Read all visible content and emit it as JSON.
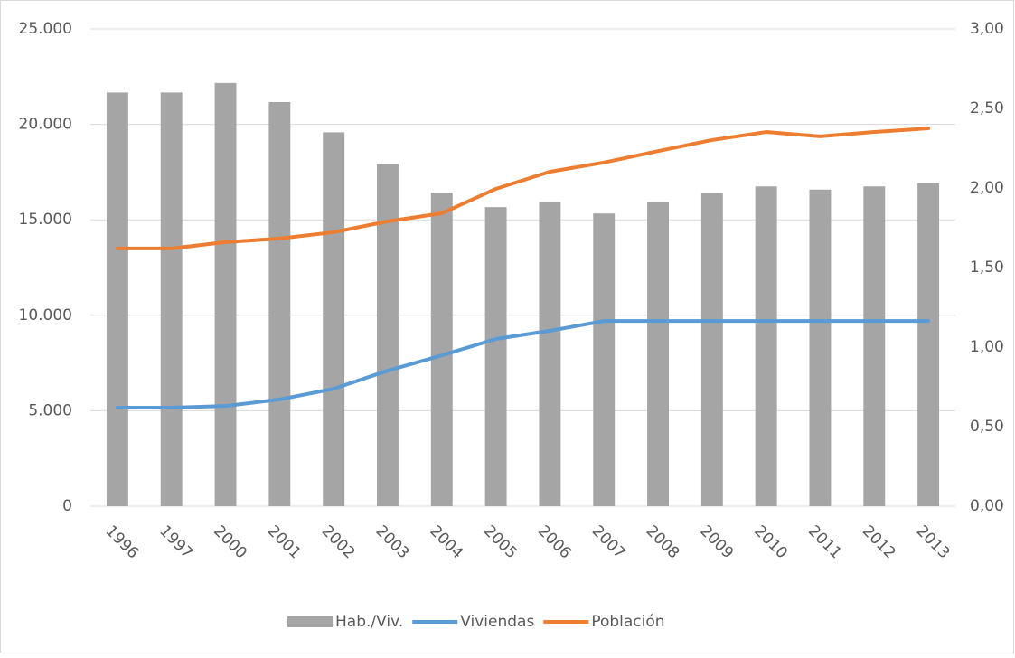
{
  "chart_data": {
    "type": "bar-line",
    "categories": [
      "1996",
      "1997",
      "2000",
      "2001",
      "2002",
      "2003",
      "2004",
      "2005",
      "2006",
      "2007",
      "2008",
      "2009",
      "2010",
      "2011",
      "2012",
      "2013"
    ],
    "series": [
      {
        "name": "Hab./Viv.",
        "type": "bar",
        "axis": "y2",
        "color": "#a5a5a5",
        "values": [
          2.6,
          2.6,
          2.66,
          2.54,
          2.35,
          2.15,
          1.97,
          1.88,
          1.91,
          1.84,
          1.91,
          1.97,
          2.01,
          1.99,
          2.01,
          2.03
        ]
      },
      {
        "name": "Viviendas",
        "type": "line",
        "color": "#5b9bd5",
        "values": [
          5160,
          5160,
          5250,
          5590,
          6150,
          7100,
          7900,
          8760,
          9190,
          9700,
          9700,
          9700,
          9700,
          9700,
          9700,
          9700
        ]
      },
      {
        "name": "Población",
        "type": "line",
        "color": "#ed7d31",
        "values": [
          13500,
          13500,
          13830,
          14020,
          14350,
          14920,
          15340,
          16620,
          17520,
          18000,
          18600,
          19180,
          19600,
          19370,
          19600,
          19790
        ]
      }
    ],
    "ylim": [
      0,
      25000
    ],
    "yticks": [
      0,
      {
        "value": 5000,
        "label": "5.000"
      },
      {
        "value": 10000,
        "label": "10.000"
      },
      {
        "value": 15000,
        "label": "15.000"
      },
      {
        "value": 20000,
        "label": "20.000"
      },
      {
        "value": 25000,
        "label": "25.000"
      }
    ],
    "y2lim": [
      0,
      3
    ],
    "y2ticks": [
      {
        "value": 0,
        "label": "0,00"
      },
      {
        "value": 0.5,
        "label": "0,50"
      },
      {
        "value": 1,
        "label": "1,00"
      },
      {
        "value": 1.5,
        "label": "1,50"
      },
      {
        "value": 2,
        "label": "2,00"
      },
      {
        "value": 2.5,
        "label": "2,50"
      },
      {
        "value": 3,
        "label": "3,00"
      }
    ],
    "grid": true,
    "legend": "bottom"
  }
}
